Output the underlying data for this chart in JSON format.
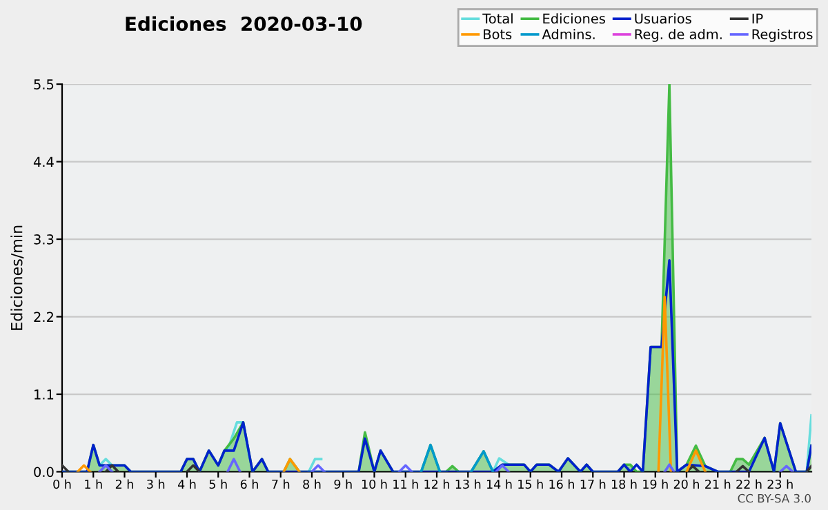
{
  "chart_data": {
    "type": "line",
    "title": "Ediciones  2020-03-10",
    "ylabel": "Ediciones/min",
    "annotations": [
      "CC BY-SA 3.0"
    ],
    "xlim": [
      0,
      24
    ],
    "xticks": [
      {
        "value": 0,
        "label": "0 h"
      },
      {
        "value": 1,
        "label": "1 h"
      },
      {
        "value": 2,
        "label": "2 h"
      },
      {
        "value": 3,
        "label": "3 h"
      },
      {
        "value": 4,
        "label": "4 h"
      },
      {
        "value": 5,
        "label": "5 h"
      },
      {
        "value": 6,
        "label": "6 h"
      },
      {
        "value": 7,
        "label": "7 h"
      },
      {
        "value": 8,
        "label": "8 h"
      },
      {
        "value": 9,
        "label": "9 h"
      },
      {
        "value": 10,
        "label": "10 h"
      },
      {
        "value": 11,
        "label": "11 h"
      },
      {
        "value": 12,
        "label": "12 h"
      },
      {
        "value": 13,
        "label": "13 h"
      },
      {
        "value": 14,
        "label": "14 h"
      },
      {
        "value": 15,
        "label": "15 h"
      },
      {
        "value": 16,
        "label": "16 h"
      },
      {
        "value": 17,
        "label": "17 h"
      },
      {
        "value": 18,
        "label": "18 h"
      },
      {
        "value": 19,
        "label": "19 h"
      },
      {
        "value": 20,
        "label": "20 h"
      },
      {
        "value": 21,
        "label": "21 h"
      },
      {
        "value": 22,
        "label": "22 h"
      },
      {
        "value": 23,
        "label": "23 h"
      }
    ],
    "ylim": [
      0,
      5.5
    ],
    "yticks": [
      {
        "value": 0,
        "label": "0.0"
      },
      1.1,
      2.2,
      3.3,
      4.4,
      5.5
    ],
    "grid": "y",
    "legend": "top right",
    "series": [
      {
        "name": "Total",
        "color": "#66dddd",
        "x": [
          1.2,
          1.4,
          1.6,
          1.7,
          5.3,
          5.6,
          5.8,
          6.0,
          7.7,
          7.9,
          8.1,
          8.3,
          8.4,
          13.8,
          14.0,
          14.3,
          14.4,
          23.85,
          24
        ],
        "values": [
          0.09,
          0.18,
          0.09,
          null,
          0.3,
          0.7,
          0.7,
          0.2,
          null,
          0,
          0.18,
          0.18,
          null,
          0,
          0.19,
          0.1,
          null,
          0,
          0.8
        ]
      },
      {
        "name": "Ediciones",
        "type": "area",
        "color": "#44bb44",
        "x": [
          0,
          0.8,
          1.0,
          1.2,
          1.5,
          1.8,
          2.0,
          2.2,
          3.8,
          4.0,
          4.2,
          4.4,
          4.7,
          5.0,
          5.2,
          5.5,
          5.8,
          6.1,
          6.4,
          6.6,
          7.1,
          7.3,
          7.6,
          9.5,
          9.7,
          10.0,
          10.2,
          10.6,
          11.5,
          11.8,
          12.1,
          12.3,
          12.5,
          12.7,
          13.1,
          13.5,
          13.8,
          14.1,
          14.3,
          14.8,
          15.0,
          15.2,
          15.6,
          15.9,
          16.2,
          16.6,
          16.8,
          17.0,
          17.8,
          18.0,
          18.2,
          18.4,
          18.6,
          18.85,
          19.2,
          19.45,
          19.7,
          20.0,
          20.3,
          20.6,
          21.0,
          21.4,
          21.6,
          21.8,
          22.0,
          22.5,
          22.8,
          23.0,
          23.5,
          23.85,
          24
        ],
        "values": [
          0,
          0,
          0.38,
          0.09,
          0.09,
          0.09,
          0.09,
          0,
          0,
          0.18,
          0.18,
          0,
          0.3,
          0.09,
          0.3,
          0.47,
          0.7,
          0,
          0.18,
          0,
          0,
          0.18,
          0,
          0,
          0.56,
          0,
          0.3,
          0,
          0,
          0.38,
          0,
          0,
          0.08,
          0,
          0,
          0.29,
          0,
          0.1,
          0.1,
          0.1,
          0,
          0.1,
          0.1,
          0,
          0.19,
          0,
          0.1,
          0,
          0,
          0.1,
          0.1,
          0,
          0,
          1.77,
          1.77,
          5.5,
          0,
          0.1,
          0.37,
          0.08,
          0,
          0,
          0.18,
          0.18,
          0.1,
          0.48,
          0,
          0.69,
          0,
          0,
          0.37
        ]
      },
      {
        "name": "Usuarios",
        "color": "#0022cc",
        "x": [
          0,
          0.8,
          1.0,
          1.2,
          1.5,
          1.8,
          2.0,
          2.2,
          3.8,
          4.0,
          4.2,
          4.4,
          4.7,
          5.0,
          5.2,
          5.5,
          5.8,
          6.1,
          6.4,
          6.6,
          9.5,
          9.7,
          10.0,
          10.2,
          10.6,
          13.8,
          14.1,
          14.3,
          14.8,
          15.0,
          15.2,
          15.6,
          15.9,
          16.2,
          16.6,
          16.8,
          17.0,
          17.8,
          18.0,
          18.2,
          18.4,
          18.6,
          18.85,
          19.2,
          19.45,
          19.7,
          20.0,
          20.6,
          21.0,
          22.0,
          22.5,
          22.8,
          23.0,
          23.5,
          23.85,
          24
        ],
        "values": [
          0,
          0,
          0.38,
          0.09,
          0.09,
          0.09,
          0.09,
          0,
          0,
          0.18,
          0.18,
          0,
          0.3,
          0.09,
          0.3,
          0.3,
          0.7,
          0,
          0.18,
          0,
          0,
          0.47,
          0,
          0.3,
          0,
          0,
          0.1,
          0.1,
          0.1,
          0,
          0.1,
          0.1,
          0,
          0.19,
          0,
          0.1,
          0,
          0,
          0.1,
          0,
          0.1,
          0,
          1.77,
          1.77,
          3.0,
          0,
          0.1,
          0.08,
          0,
          0,
          0.48,
          0,
          0.69,
          0,
          0,
          0.37
        ]
      },
      {
        "name": "IP",
        "color": "#333333",
        "x": [
          0,
          0.2,
          0.3,
          1.4,
          1.6,
          1.8,
          1.9,
          4.0,
          4.2,
          4.4,
          4.5,
          20.0,
          20.2,
          20.4,
          20.5,
          21.6,
          21.8,
          22.0,
          22.1,
          23.85,
          24
        ],
        "values": [
          0.09,
          0,
          null,
          0,
          0.09,
          0,
          null,
          0,
          0.09,
          0,
          null,
          0,
          0.08,
          0,
          null,
          0,
          0.08,
          0,
          null,
          0,
          0.08
        ]
      },
      {
        "name": "Bots",
        "color": "#ff9900",
        "x": [
          0.5,
          0.7,
          0.9,
          1.0,
          7.1,
          7.3,
          7.6,
          7.7,
          19.1,
          19.3,
          19.5,
          19.6,
          20.0,
          20.3,
          20.6
        ],
        "values": [
          0,
          0.09,
          0,
          null,
          0,
          0.18,
          0,
          null,
          0,
          2.48,
          0,
          null,
          0,
          0.3,
          0
        ]
      },
      {
        "name": "Admins.",
        "color": "#0099cc",
        "x": [
          11.5,
          11.8,
          12.1,
          12.2,
          13.1,
          13.5,
          13.8
        ],
        "values": [
          0,
          0.38,
          0,
          null,
          0,
          0.29,
          0
        ]
      },
      {
        "name": "Reg. de adm.",
        "color": "#dd44dd"
      },
      {
        "name": "Registros",
        "color": "#6666ff",
        "x": [
          1.2,
          1.4,
          1.6,
          1.7,
          5.3,
          5.5,
          5.7,
          5.8,
          8.0,
          8.2,
          8.4,
          8.5,
          10.8,
          11.0,
          11.2,
          11.3,
          13.9,
          14.1,
          14.3,
          14.4,
          19.3,
          19.45,
          19.6,
          19.7,
          23.0,
          23.2,
          23.4
        ],
        "values": [
          0,
          0.09,
          0,
          null,
          0,
          0.18,
          0,
          null,
          0,
          0.09,
          0,
          null,
          0,
          0.09,
          0,
          null,
          0,
          0.09,
          0,
          null,
          0,
          0.1,
          0,
          null,
          0,
          0.08,
          0
        ]
      }
    ]
  }
}
